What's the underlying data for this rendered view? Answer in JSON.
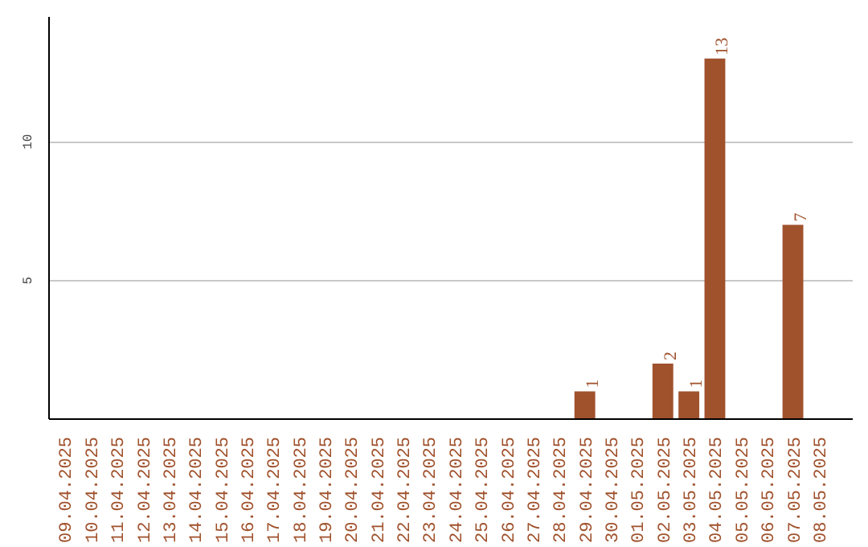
{
  "chart_data": {
    "type": "bar",
    "categories": [
      "09.04.2025",
      "10.04.2025",
      "11.04.2025",
      "12.04.2025",
      "13.04.2025",
      "14.04.2025",
      "15.04.2025",
      "16.04.2025",
      "17.04.2025",
      "18.04.2025",
      "19.04.2025",
      "20.04.2025",
      "21.04.2025",
      "22.04.2025",
      "23.04.2025",
      "24.04.2025",
      "25.04.2025",
      "26.04.2025",
      "27.04.2025",
      "28.04.2025",
      "29.04.2025",
      "30.04.2025",
      "01.05.2025",
      "02.05.2025",
      "03.05.2025",
      "04.05.2025",
      "05.05.2025",
      "06.05.2025",
      "07.05.2025",
      "08.05.2025"
    ],
    "values": [
      0,
      0,
      0,
      0,
      0,
      0,
      0,
      0,
      0,
      0,
      0,
      0,
      0,
      0,
      0,
      0,
      0,
      0,
      0,
      0,
      1,
      0,
      0,
      2,
      1,
      13,
      0,
      0,
      7,
      0
    ],
    "value_labels": [
      null,
      null,
      null,
      null,
      null,
      null,
      null,
      null,
      null,
      null,
      null,
      null,
      null,
      null,
      null,
      null,
      null,
      null,
      null,
      null,
      "1",
      null,
      null,
      "2",
      "1",
      "13",
      null,
      null,
      "7",
      null
    ],
    "color": "#a0522d",
    "ylim": [
      0,
      14.5
    ],
    "yticks": [
      5,
      10
    ],
    "grid": "y"
  }
}
